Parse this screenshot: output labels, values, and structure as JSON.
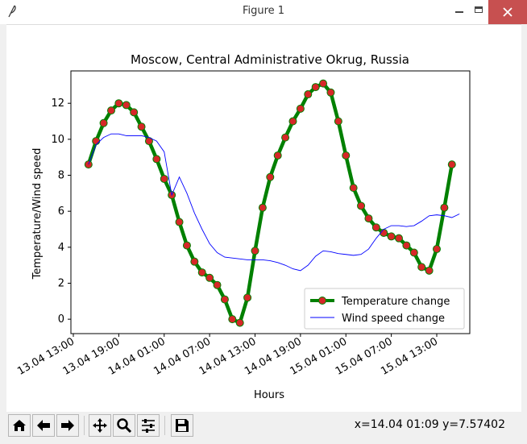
{
  "window": {
    "title": "Figure 1"
  },
  "toolbar": {
    "buttons": [
      {
        "name": "home-button",
        "icon": "home-icon"
      },
      {
        "name": "back-button",
        "icon": "arrow-left-icon"
      },
      {
        "name": "forward-button",
        "icon": "arrow-right-icon"
      },
      {
        "name": "pan-button",
        "icon": "move-icon"
      },
      {
        "name": "zoom-button",
        "icon": "magnifier-icon"
      },
      {
        "name": "configure-subplots-button",
        "icon": "sliders-icon"
      },
      {
        "name": "save-button",
        "icon": "floppy-disk-icon"
      }
    ],
    "coords": "x=14.04 01:09 y=7.57402"
  },
  "chart_data": {
    "type": "line",
    "title": "Moscow, Central Administrative Okrug, Russia",
    "xlabel": "Hours",
    "ylabel": "Temperature/Wind speed",
    "x_ticks": [
      "13.04 13:00",
      "13.04 19:00",
      "14.04 01:00",
      "14.04 07:00",
      "14.04 13:00",
      "14.04 19:00",
      "15.04 01:00",
      "15.04 07:00",
      "15.04 13:00"
    ],
    "y_ticks": [
      0,
      2,
      4,
      6,
      8,
      10,
      12
    ],
    "ylim": [
      -0.8,
      13.8
    ],
    "legend_position": "lower-right",
    "series": [
      {
        "name": "Temperature change",
        "color": "#008000",
        "marker_color": "#d62728",
        "x": [
          "13.04 15:00",
          "13.04 16:00",
          "13.04 17:00",
          "13.04 18:00",
          "13.04 19:00",
          "13.04 20:00",
          "13.04 21:00",
          "13.04 22:00",
          "13.04 23:00",
          "14.04 00:00",
          "14.04 01:00",
          "14.04 02:00",
          "14.04 03:00",
          "14.04 04:00",
          "14.04 05:00",
          "14.04 06:00",
          "14.04 07:00",
          "14.04 08:00",
          "14.04 09:00",
          "14.04 10:00",
          "14.04 11:00",
          "14.04 12:00",
          "14.04 13:00",
          "14.04 14:00",
          "14.04 15:00",
          "14.04 16:00",
          "14.04 17:00",
          "14.04 18:00",
          "14.04 19:00",
          "14.04 20:00",
          "14.04 21:00",
          "14.04 22:00",
          "14.04 23:00",
          "15.04 00:00",
          "15.04 01:00",
          "15.04 02:00",
          "15.04 03:00",
          "15.04 04:00",
          "15.04 05:00",
          "15.04 06:00",
          "15.04 07:00",
          "15.04 08:00",
          "15.04 09:00",
          "15.04 10:00",
          "15.04 11:00",
          "15.04 12:00",
          "15.04 13:00",
          "15.04 14:00",
          "15.04 15:00"
        ],
        "values": [
          8.6,
          9.9,
          10.9,
          11.6,
          12.0,
          11.9,
          11.5,
          10.7,
          9.9,
          8.9,
          7.8,
          6.9,
          5.4,
          4.1,
          3.2,
          2.6,
          2.3,
          1.9,
          1.1,
          0.0,
          -0.2,
          1.2,
          3.8,
          6.2,
          7.9,
          9.1,
          10.1,
          11.0,
          11.7,
          12.5,
          12.9,
          13.1,
          12.6,
          11.0,
          9.1,
          7.3,
          6.3,
          5.6,
          5.1,
          4.8,
          4.6,
          4.5,
          4.1,
          3.7,
          2.9,
          2.7,
          3.9,
          6.2,
          8.6
        ]
      },
      {
        "name": "Wind speed change",
        "color": "#0000ff",
        "x": [
          "13.04 15:00",
          "13.04 16:00",
          "13.04 17:00",
          "13.04 18:00",
          "13.04 19:00",
          "13.04 20:00",
          "13.04 21:00",
          "13.04 22:00",
          "13.04 23:00",
          "14.04 00:00",
          "14.04 01:00",
          "14.04 02:00",
          "14.04 03:00",
          "14.04 04:00",
          "14.04 05:00",
          "14.04 06:00",
          "14.04 07:00",
          "14.04 08:00",
          "14.04 09:00",
          "14.04 10:00",
          "14.04 11:00",
          "14.04 12:00",
          "14.04 13:00",
          "14.04 14:00",
          "14.04 15:00",
          "14.04 16:00",
          "14.04 17:00",
          "14.04 18:00",
          "14.04 19:00",
          "14.04 20:00",
          "14.04 21:00",
          "14.04 22:00",
          "14.04 23:00",
          "15.04 00:00",
          "15.04 01:00",
          "15.04 02:00",
          "15.04 03:00",
          "15.04 04:00",
          "15.04 05:00",
          "15.04 06:00",
          "15.04 07:00",
          "15.04 08:00",
          "15.04 09:00",
          "15.04 10:00",
          "15.04 11:00",
          "15.04 12:00",
          "15.04 13:00",
          "15.04 14:00",
          "15.04 15:00",
          "15.04 16:00"
        ],
        "values": [
          8.6,
          9.7,
          10.1,
          10.3,
          10.3,
          10.2,
          10.2,
          10.2,
          10.1,
          9.9,
          9.3,
          6.9,
          7.9,
          7.0,
          5.9,
          5.0,
          4.2,
          3.7,
          3.45,
          3.4,
          3.35,
          3.3,
          3.3,
          3.3,
          3.25,
          3.15,
          3.0,
          2.8,
          2.7,
          3.0,
          3.5,
          3.8,
          3.75,
          3.65,
          3.6,
          3.55,
          3.6,
          3.9,
          4.5,
          5.0,
          5.2,
          5.2,
          5.15,
          5.2,
          5.45,
          5.75,
          5.8,
          5.75,
          5.65,
          5.85
        ]
      }
    ]
  }
}
